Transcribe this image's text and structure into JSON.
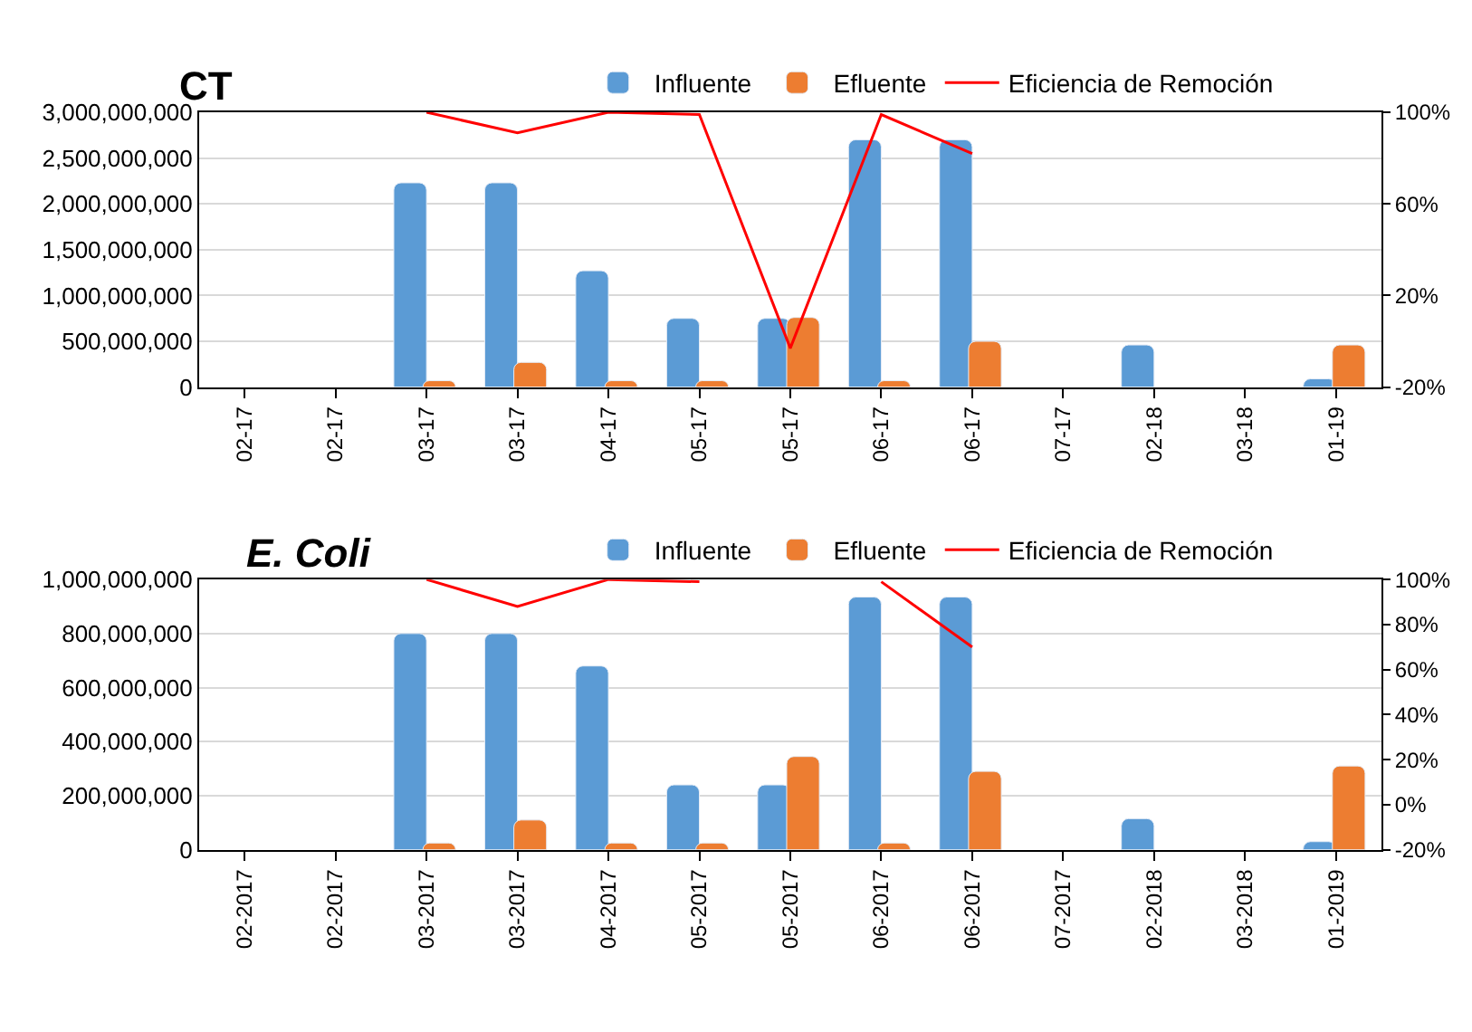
{
  "chart_data": [
    {
      "type": "bar",
      "title": "CT",
      "categories": [
        "02-17",
        "02-17",
        "03-17",
        "03-17",
        "04-17",
        "05-17",
        "05-17",
        "06-17",
        "06-17",
        "07-17",
        "02-18",
        "03-18",
        "01-19"
      ],
      "series": [
        {
          "name": "Influente",
          "color": "#5b9bd5",
          "values": [
            null,
            null,
            2230000000,
            2230000000,
            1270000000,
            750000000,
            750000000,
            2700000000,
            2700000000,
            null,
            460000000,
            null,
            90000000
          ]
        },
        {
          "name": "Efluente",
          "color": "#ed7d31",
          "values": [
            null,
            null,
            70000000,
            270000000,
            70000000,
            70000000,
            760000000,
            70000000,
            500000000,
            null,
            null,
            null,
            460000000
          ]
        },
        {
          "name": "Eficiencia de Remoción",
          "type": "line",
          "axis": "y2",
          "color": "#ff0000",
          "values": [
            null,
            null,
            100,
            91,
            100,
            99,
            -3,
            99,
            82,
            null,
            null,
            null,
            null
          ]
        }
      ],
      "ylim": [
        0,
        3000000000
      ],
      "yticks": [
        {
          "value": 0,
          "label": "0"
        },
        {
          "value": 500000000,
          "label": "500,000,000"
        },
        {
          "value": 1000000000,
          "label": "1,000,000,000"
        },
        {
          "value": 1500000000,
          "label": "1,500,000,000"
        },
        {
          "value": 2000000000,
          "label": "2,000,000,000"
        },
        {
          "value": 2500000000,
          "label": "2,500,000,000"
        },
        {
          "value": 3000000000,
          "label": "3,000,000,000"
        }
      ],
      "y2lim": [
        -20,
        100
      ],
      "y2ticks": [
        {
          "value": -20,
          "label": "-20%"
        },
        {
          "value": 20,
          "label": "20%"
        },
        {
          "value": 60,
          "label": "60%"
        },
        {
          "value": 100,
          "label": "100%"
        }
      ],
      "grid": "y",
      "legend": "top"
    },
    {
      "type": "bar",
      "title": "E. Coli",
      "categories": [
        "02-2017",
        "02-2017",
        "03-2017",
        "03-2017",
        "04-2017",
        "05-2017",
        "05-2017",
        "06-2017",
        "06-2017",
        "07-2017",
        "02-2018",
        "03-2018",
        "01-2019"
      ],
      "series": [
        {
          "name": "Influente",
          "color": "#5b9bd5",
          "values": [
            null,
            null,
            800000000,
            800000000,
            680000000,
            240000000,
            240000000,
            935000000,
            935000000,
            null,
            115000000,
            null,
            30000000
          ]
        },
        {
          "name": "Efluente",
          "color": "#ed7d31",
          "values": [
            null,
            null,
            25000000,
            110000000,
            25000000,
            25000000,
            345000000,
            25000000,
            290000000,
            null,
            null,
            null,
            310000000
          ]
        },
        {
          "name": "Eficiencia de Remoción",
          "type": "line",
          "axis": "y2",
          "color": "#ff0000",
          "values": [
            null,
            null,
            100,
            88,
            100,
            99,
            null,
            99,
            70,
            null,
            null,
            null,
            null
          ]
        }
      ],
      "ylim": [
        0,
        1000000000
      ],
      "yticks": [
        {
          "value": 0,
          "label": "0"
        },
        {
          "value": 200000000,
          "label": "200,000,000"
        },
        {
          "value": 400000000,
          "label": "400,000,000"
        },
        {
          "value": 600000000,
          "label": "600,000,000"
        },
        {
          "value": 800000000,
          "label": "800,000,000"
        },
        {
          "value": 1000000000,
          "label": "1,000,000,000"
        }
      ],
      "y2lim": [
        -20,
        100
      ],
      "y2ticks": [
        {
          "value": -20,
          "label": "-20%"
        },
        {
          "value": 0,
          "label": "0%"
        },
        {
          "value": 20,
          "label": "20%"
        },
        {
          "value": 40,
          "label": "40%"
        },
        {
          "value": 60,
          "label": "60%"
        },
        {
          "value": 80,
          "label": "80%"
        },
        {
          "value": 100,
          "label": "100%"
        }
      ],
      "grid": "y",
      "legend": "top"
    }
  ]
}
